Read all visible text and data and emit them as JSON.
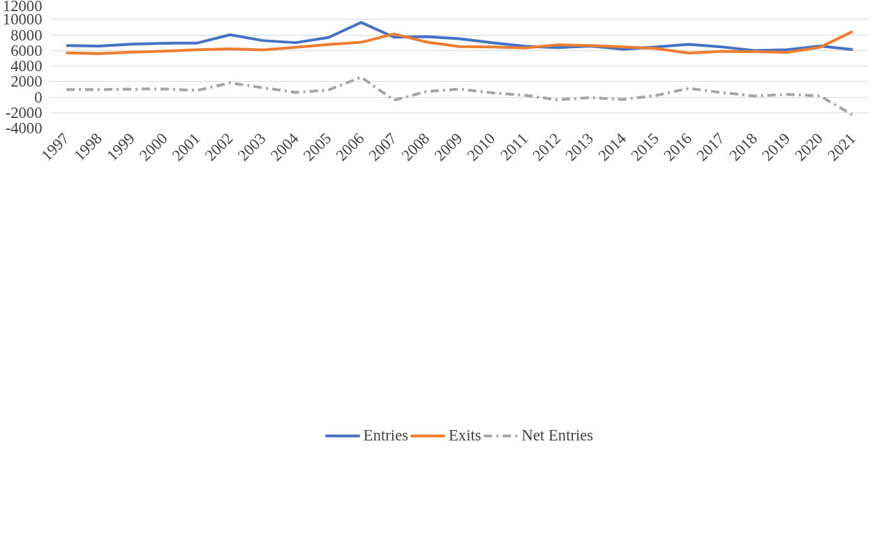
{
  "chart_data": {
    "type": "line",
    "categories": [
      "1997",
      "1998",
      "1999",
      "2000",
      "2001",
      "2002",
      "2003",
      "2004",
      "2005",
      "2006",
      "2007",
      "2008",
      "2009",
      "2010",
      "2011",
      "2012",
      "2013",
      "2014",
      "2015",
      "2016",
      "2017",
      "2018",
      "2019",
      "2020",
      "2021"
    ],
    "series": [
      {
        "name": "Entries",
        "color": "#4472c4",
        "values": [
          6630,
          6560,
          6800,
          6930,
          6950,
          8020,
          7270,
          7000,
          7660,
          9610,
          7710,
          7780,
          7510,
          6980,
          6540,
          6370,
          6560,
          6150,
          6440,
          6780,
          6460,
          5980,
          6100,
          6560,
          6120
        ]
      },
      {
        "name": "Exits",
        "color": "#ed7d31",
        "values": [
          5680,
          5590,
          5780,
          5900,
          6100,
          6200,
          6070,
          6410,
          6760,
          7050,
          8120,
          7070,
          6490,
          6440,
          6320,
          6730,
          6630,
          6460,
          6240,
          5660,
          5880,
          5850,
          5760,
          6410,
          8440
        ]
      },
      {
        "name": "Net Entries",
        "color": "#a5a5a5",
        "line_style": "dashed",
        "values": [
          950,
          970,
          1020,
          1030,
          850,
          1820,
          1200,
          590,
          900,
          2560,
          -410,
          710,
          1020,
          540,
          220,
          -360,
          -70,
          -310,
          200,
          1120,
          580,
          130,
          340,
          150,
          -2320
        ]
      }
    ],
    "ylim": [
      -4000,
      12000
    ],
    "yticks": [
      -4000,
      -2000,
      0,
      2000,
      4000,
      6000,
      8000,
      10000,
      12000
    ],
    "grid": "y",
    "legend": "bottom",
    "marker": "none",
    "line_style": "solid"
  }
}
